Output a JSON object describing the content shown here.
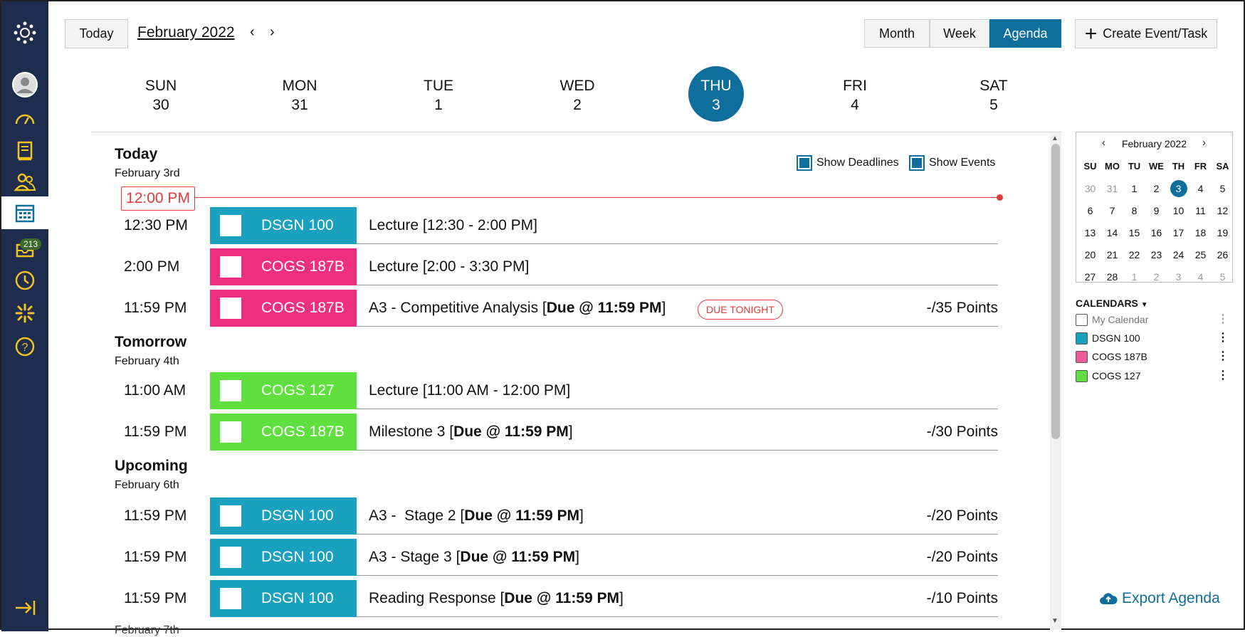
{
  "toolbar": {
    "today_label": "Today",
    "month_title": "February 2022",
    "prev": "‹",
    "next": "›",
    "views": [
      "Month",
      "Week",
      "Agenda"
    ],
    "active_view": "Agenda",
    "create_label": "Create Event/Task"
  },
  "sidebar": {
    "badge": "213"
  },
  "week": [
    {
      "dow": "SUN",
      "num": "30"
    },
    {
      "dow": "MON",
      "num": "31"
    },
    {
      "dow": "TUE",
      "num": "1"
    },
    {
      "dow": "WED",
      "num": "2"
    },
    {
      "dow": "THU",
      "num": "3"
    },
    {
      "dow": "FRI",
      "num": "4"
    },
    {
      "dow": "SAT",
      "num": "5"
    }
  ],
  "filters": {
    "deadlines": "Show Deadlines",
    "events": "Show Events"
  },
  "now_label": "12:00 PM",
  "sections": [
    {
      "title": "Today",
      "date": "February 3rd"
    },
    {
      "title": "Tomorrow",
      "date": "February 4th"
    },
    {
      "title": "Upcoming",
      "date": "February 6th"
    }
  ],
  "rows": [
    {
      "time": "12:30 PM",
      "course": "DSGN 100",
      "title": "Lecture [12:30 - 2:00 PM]",
      "bold": "",
      "suffix": "",
      "points": ""
    },
    {
      "time": "2:00 PM",
      "course": "COGS 187B",
      "title": "Lecture [2:00 - 3:30 PM]",
      "bold": "",
      "suffix": "",
      "points": ""
    },
    {
      "time": "11:59 PM",
      "course": "COGS 187B",
      "title": "A3 - Competitive Analysis [",
      "bold": "Due @ 11:59 PM",
      "suffix": "]",
      "points": "-/35 Points",
      "badge": "DUE TONIGHT"
    },
    {
      "time": "11:00 AM",
      "course": "COGS 127",
      "title": "Lecture [11:00 AM - 12:00 PM]",
      "bold": "",
      "suffix": "",
      "points": ""
    },
    {
      "time": "11:59 PM",
      "course": "COGS 187B",
      "title": "Milestone 3 [",
      "bold": "Due @ 11:59 PM",
      "suffix": "]",
      "points": "-/30 Points"
    },
    {
      "time": "11:59 PM",
      "course": "DSGN 100",
      "title": "A3 -  Stage 2 [",
      "bold": "Due @ 11:59 PM",
      "suffix": "]",
      "points": "-/20 Points"
    },
    {
      "time": "11:59 PM",
      "course": "DSGN 100",
      "title": "A3 - Stage 3 [",
      "bold": "Due @ 11:59 PM",
      "suffix": "]",
      "points": "-/20 Points"
    },
    {
      "time": "11:59 PM",
      "course": "DSGN 100",
      "title": "Reading Response [",
      "bold": "Due @ 11:59 PM",
      "suffix": "]",
      "points": "-/10 Points"
    }
  ],
  "partial_next_date": "February 7th",
  "colors": {
    "dsgn": "#1aa1c0",
    "cogs187b": "#ee2f80",
    "cogs127": "#5fe03f",
    "accent": "#0f6f9c",
    "now": "#e53a3a"
  },
  "mini_calendar": {
    "title": "February 2022",
    "dows": [
      "SU",
      "MO",
      "TU",
      "WE",
      "TH",
      "FR",
      "SA"
    ],
    "weeks": [
      [
        "30",
        "31",
        "1",
        "2",
        "3",
        "4",
        "5"
      ],
      [
        "6",
        "7",
        "8",
        "9",
        "10",
        "11",
        "12"
      ],
      [
        "13",
        "14",
        "15",
        "16",
        "17",
        "18",
        "19"
      ],
      [
        "20",
        "21",
        "22",
        "23",
        "24",
        "25",
        "26"
      ],
      [
        "27",
        "28",
        "1",
        "2",
        "3",
        "4",
        "5"
      ]
    ],
    "today": "3"
  },
  "calendars": {
    "title": "CALENDARS",
    "items": [
      {
        "label": "My Calendar",
        "color": "#ffffff",
        "muted": true
      },
      {
        "label": "DSGN 100",
        "color": "#1aa1c0"
      },
      {
        "label": "COGS 187B",
        "color": "#ee5a9a"
      },
      {
        "label": "COGS 127",
        "color": "#5fe03f"
      }
    ]
  },
  "export_label": "Export Agenda"
}
